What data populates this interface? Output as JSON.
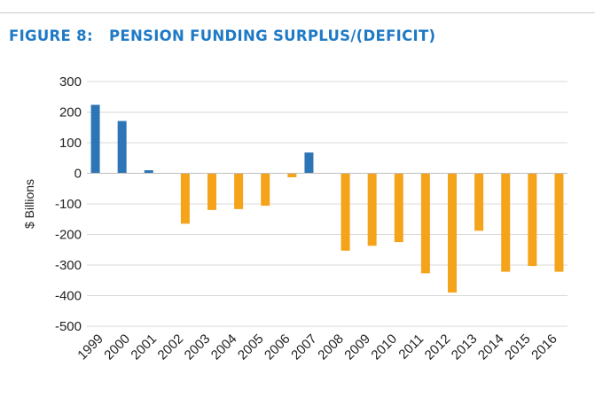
{
  "chart_data": {
    "type": "bar",
    "title": "FIGURE 8:   PENSION FUNDING SURPLUS/(DEFICIT)",
    "ylabel": "$ Billions",
    "xlabel": "",
    "ylim": [
      -500,
      300
    ],
    "yticks": [
      300,
      200,
      100,
      0,
      -100,
      -200,
      -300,
      -400,
      -500
    ],
    "grid": true,
    "legend": "none",
    "categories": [
      "1999",
      "2000",
      "2001",
      "2002",
      "2003",
      "2004",
      "2005",
      "2006",
      "2007",
      "2008",
      "2009",
      "2010",
      "2011",
      "2012",
      "2013",
      "2014",
      "2015",
      "2016"
    ],
    "series": [
      {
        "color": "#2e75b6",
        "values": [
          224,
          171,
          10,
          0,
          0,
          0,
          0,
          0,
          68,
          0,
          0,
          0,
          0,
          0,
          0,
          0,
          0,
          0
        ]
      },
      {
        "color": "#f5a31a",
        "values": [
          0,
          0,
          0,
          -165,
          -120,
          -117,
          -106,
          -13,
          0,
          -253,
          -237,
          -225,
          -327,
          -390,
          -188,
          -322,
          -303,
          -322
        ]
      }
    ],
    "colors": {
      "grid": "#d9d9d9",
      "baseline": "#bfbfbf",
      "title": "#1f7ac6",
      "text": "#222222"
    }
  }
}
